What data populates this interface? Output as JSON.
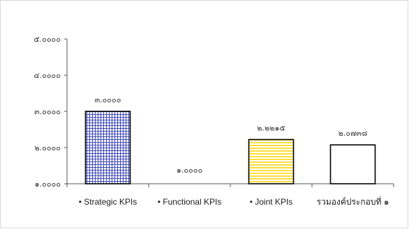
{
  "chart_data": {
    "type": "bar",
    "categories": [
      "• Strategic KPIs",
      "• Functional KPIs",
      "• Joint KPIs",
      "รวมองค์ประกอบที่ ๑"
    ],
    "values": [
      3.0,
      1.0,
      2.2215,
      2.0738
    ],
    "data_labels": [
      "๓.๐๐๐๐",
      "๑.๐๐๐๐",
      "๒.๒๒๑๕",
      "๒.๐๗๓๘"
    ],
    "ylim": [
      1,
      5
    ],
    "yticks": [
      1,
      2,
      3,
      4,
      5
    ],
    "ytick_labels": [
      "๑.๐๐๐๐",
      "๒.๐๐๐๐",
      "๓.๐๐๐๐",
      "๔.๐๐๐๐",
      "๕.๐๐๐๐"
    ],
    "bar_fills": [
      "blue-grid-pattern",
      "none",
      "yellow-horizontal-stripes",
      "white"
    ],
    "grid": false,
    "legend": "none",
    "title": "",
    "xlabel": "",
    "ylabel": "",
    "colors": {
      "axis": "#555555",
      "bar_outline": "#000000",
      "grid_pattern": "#3b47b8",
      "stripe_yellow": "#ffde3b"
    }
  }
}
